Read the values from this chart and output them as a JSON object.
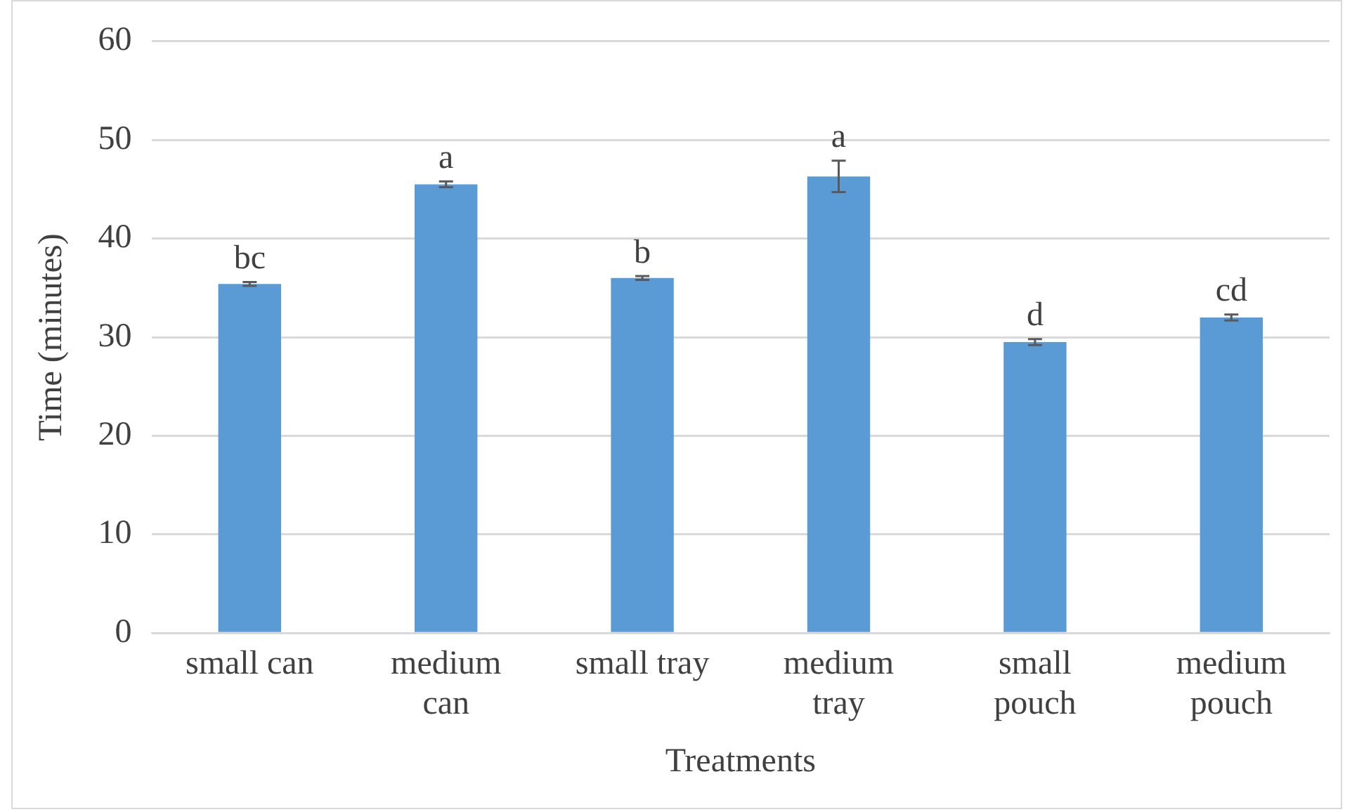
{
  "chart_data": {
    "type": "bar",
    "xlabel": "Treatments",
    "ylabel": "Time (minutes)",
    "categories": [
      "small can",
      "medium\ncan",
      "small tray",
      "medium\ntray",
      "small\npouch",
      "medium\npouch"
    ],
    "values": [
      35.4,
      45.5,
      36.0,
      46.3,
      29.5,
      32.0
    ],
    "errors": [
      0.2,
      0.3,
      0.2,
      1.6,
      0.3,
      0.3
    ],
    "color": "#5b9bd5",
    "ylim": [
      0,
      60
    ],
    "yticks": [
      0,
      10,
      20,
      30,
      40,
      50,
      60
    ],
    "grid": "y",
    "annotations": [
      {
        "text": "bc",
        "x": "small can",
        "y": 35.6
      },
      {
        "text": "a",
        "x": "medium\ncan",
        "y": 45.8
      },
      {
        "text": "b",
        "x": "small tray",
        "y": 36.2
      },
      {
        "text": "a",
        "x": "medium\ntray",
        "y": 47.9
      },
      {
        "text": "d",
        "x": "small\npouch",
        "y": 29.8
      },
      {
        "text": "cd",
        "x": "medium\npouch",
        "y": 32.3
      }
    ]
  }
}
